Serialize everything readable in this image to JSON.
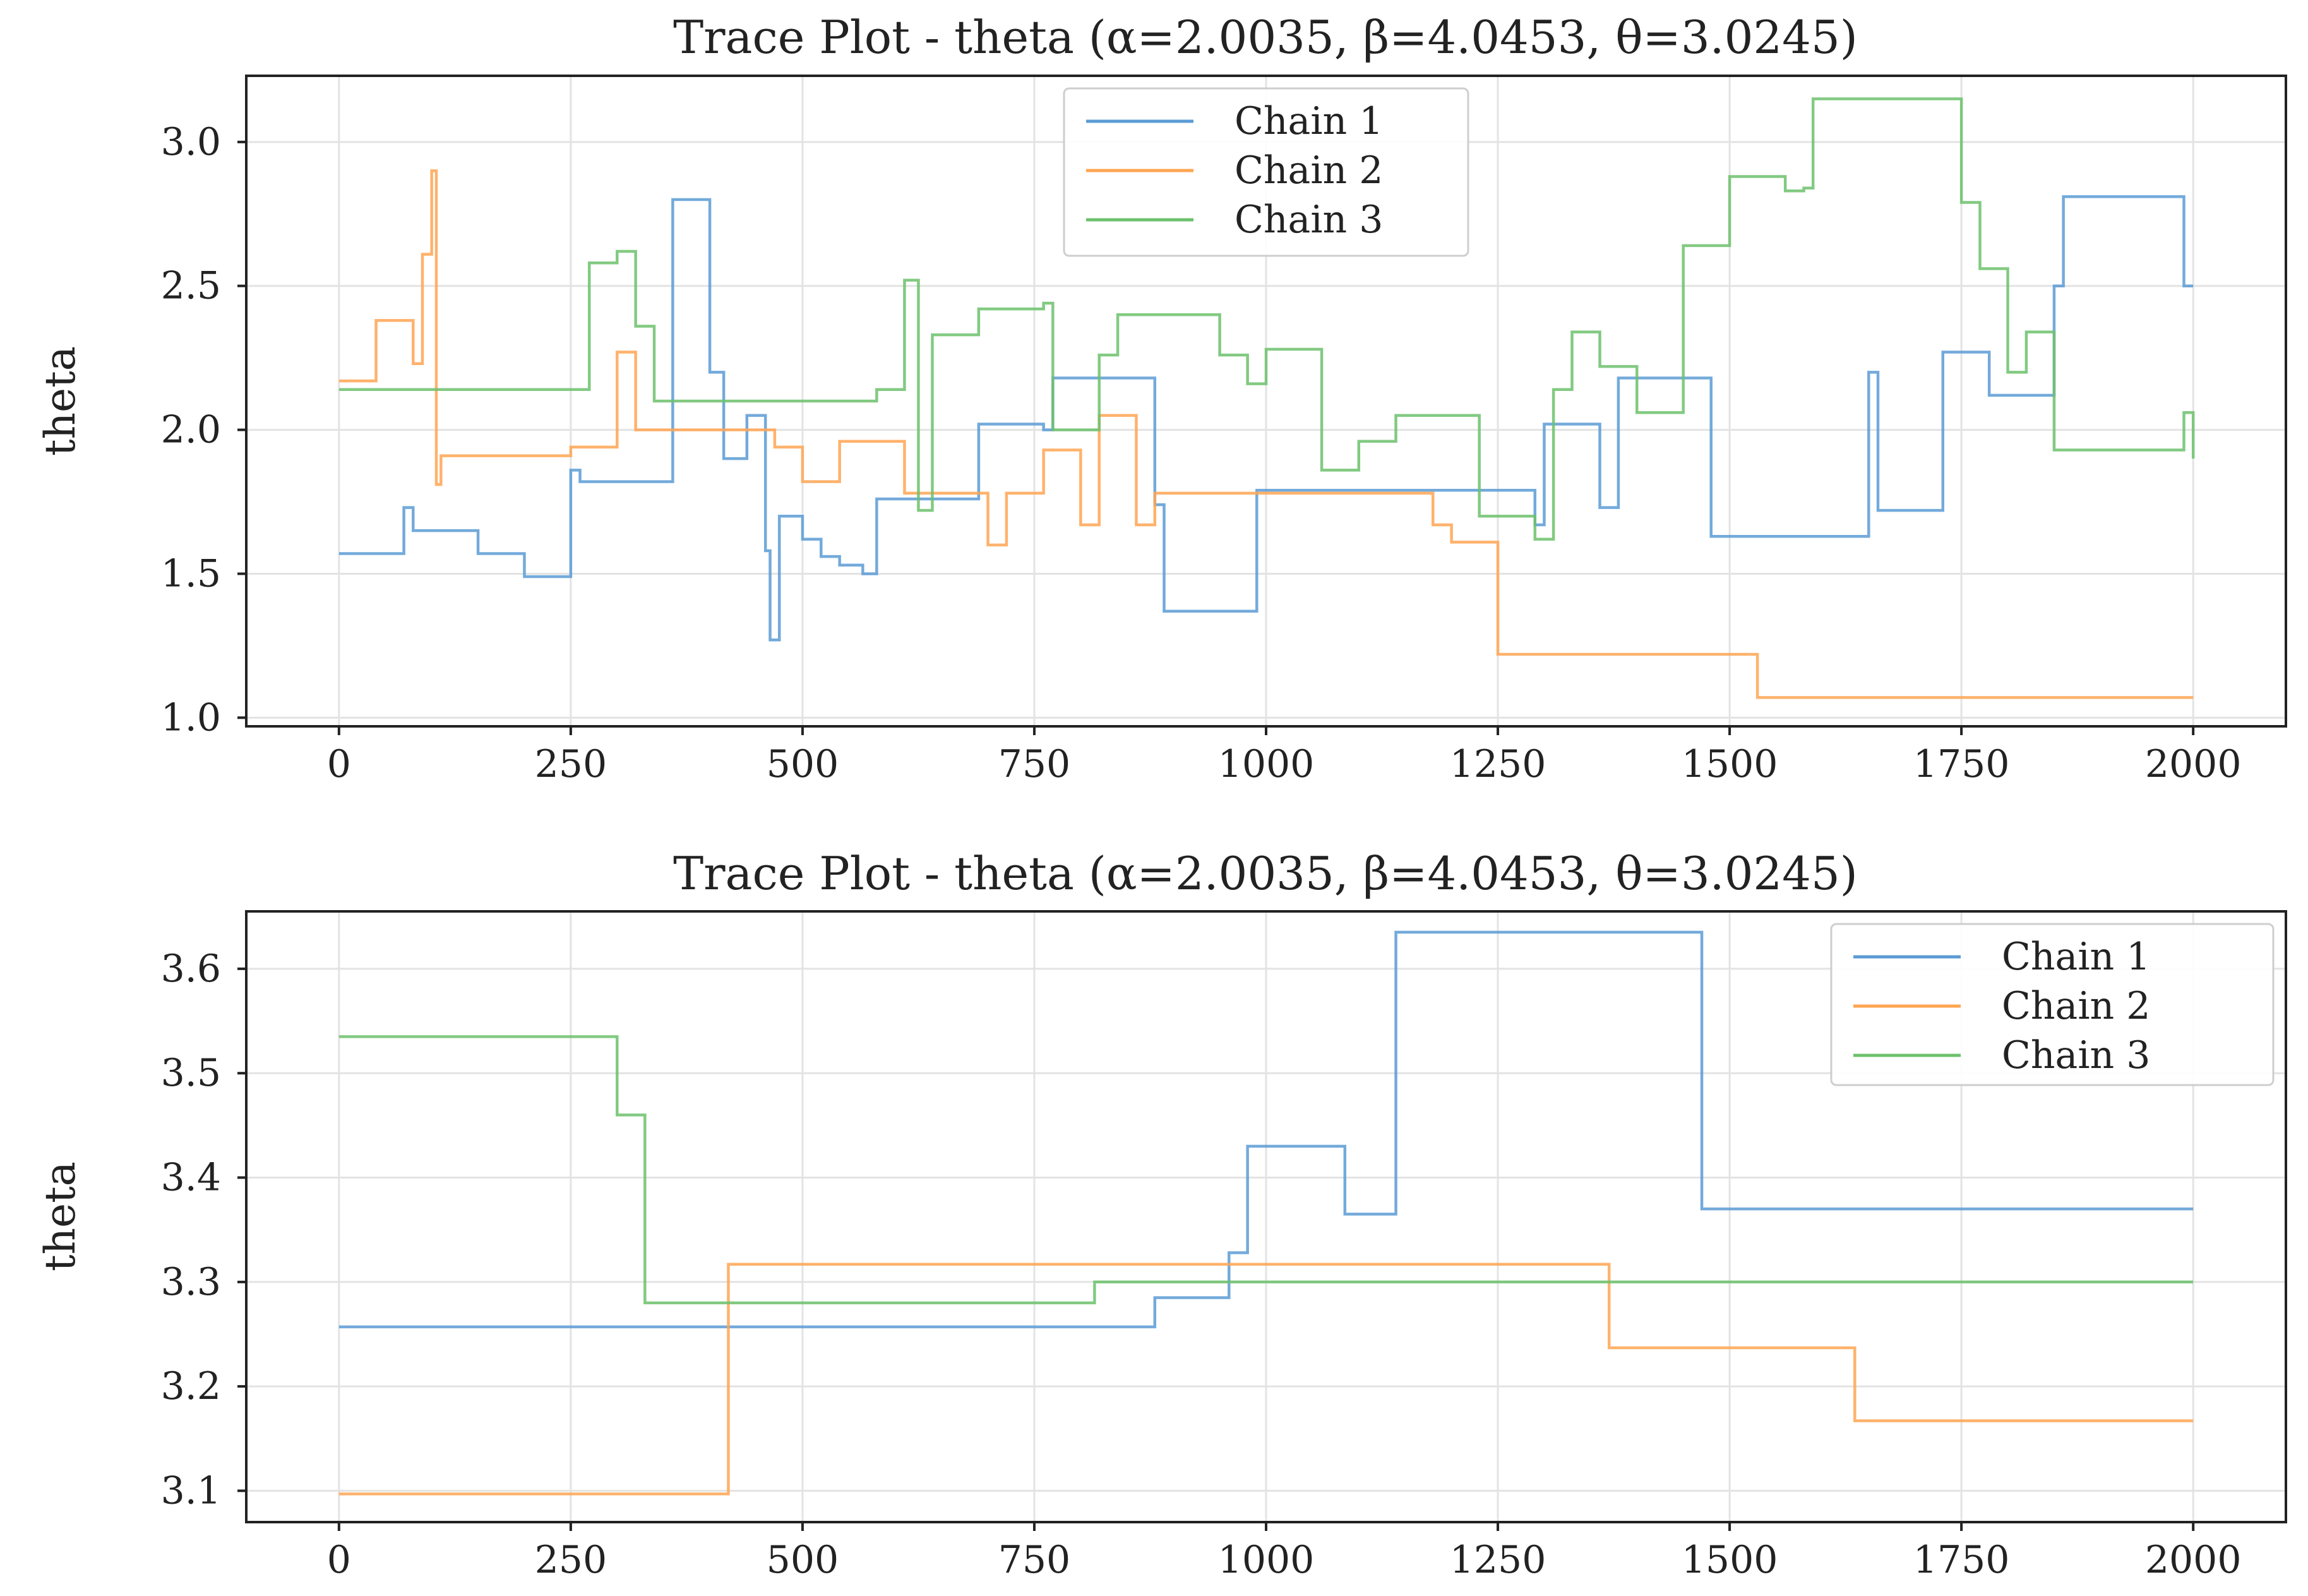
{
  "colors": {
    "chain1": "#5b9bd5",
    "chain2": "#ffa552",
    "chain3": "#6cc16c"
  },
  "chart_data": [
    {
      "type": "line",
      "title": "Trace Plot - theta (α=2.0035, β=4.0453, θ=3.0245)",
      "xlabel": "",
      "ylabel": "theta",
      "xlim": [
        -100,
        2100
      ],
      "ylim": [
        0.97,
        3.23
      ],
      "xticks": [
        0,
        250,
        500,
        750,
        1000,
        1250,
        1500,
        1750,
        2000
      ],
      "xtick_labels": [
        "0",
        "250",
        "500",
        "750",
        "1000",
        "1250",
        "1500",
        "1750",
        "2000"
      ],
      "yticks": [
        1.0,
        1.5,
        2.0,
        2.5,
        3.0
      ],
      "ytick_labels": [
        "1.0",
        "1.5",
        "2.0",
        "2.5",
        "3.0"
      ],
      "grid": true,
      "legend_position": "top-center",
      "step": true,
      "series": [
        {
          "name": "Chain 1",
          "color": "#5b9bd5",
          "x": [
            0,
            70,
            80,
            150,
            200,
            250,
            260,
            360,
            400,
            415,
            440,
            460,
            465,
            475,
            500,
            520,
            540,
            565,
            580,
            610,
            690,
            760,
            770,
            880,
            890,
            985,
            990,
            1190,
            1290,
            1300,
            1360,
            1380,
            1420,
            1480,
            1510,
            1650,
            1660,
            1700,
            1730,
            1780,
            1850,
            1860,
            1880,
            1890,
            1990,
            2000
          ],
          "y": [
            1.57,
            1.73,
            1.65,
            1.57,
            1.49,
            1.86,
            1.82,
            2.8,
            2.2,
            1.9,
            2.05,
            1.58,
            1.27,
            1.7,
            1.62,
            1.56,
            1.53,
            1.5,
            1.76,
            1.76,
            2.02,
            2.0,
            2.18,
            1.74,
            1.37,
            1.37,
            1.79,
            1.79,
            1.67,
            2.02,
            1.73,
            2.18,
            2.18,
            1.63,
            1.63,
            2.2,
            1.72,
            1.72,
            2.27,
            2.12,
            2.5,
            2.81,
            2.81,
            2.81,
            2.5,
            2.5
          ]
        },
        {
          "name": "Chain 2",
          "color": "#ffa552",
          "x": [
            0,
            40,
            80,
            90,
            100,
            105,
            110,
            180,
            250,
            300,
            320,
            400,
            470,
            500,
            540,
            560,
            610,
            650,
            700,
            720,
            760,
            800,
            820,
            860,
            880,
            990,
            1180,
            1200,
            1250,
            1500,
            1530,
            2000
          ],
          "y": [
            2.17,
            2.38,
            2.23,
            2.61,
            2.9,
            1.81,
            1.91,
            1.91,
            1.94,
            2.27,
            2.0,
            2.0,
            1.94,
            1.82,
            1.96,
            1.96,
            1.78,
            1.78,
            1.6,
            1.78,
            1.93,
            1.67,
            2.05,
            1.67,
            1.78,
            1.78,
            1.67,
            1.61,
            1.22,
            1.22,
            1.07,
            1.07
          ]
        },
        {
          "name": "Chain 3",
          "color": "#6cc16c",
          "x": [
            0,
            270,
            300,
            320,
            340,
            560,
            580,
            610,
            625,
            640,
            690,
            760,
            770,
            820,
            840,
            900,
            950,
            980,
            1000,
            1060,
            1100,
            1120,
            1140,
            1210,
            1230,
            1290,
            1310,
            1330,
            1360,
            1400,
            1450,
            1500,
            1560,
            1580,
            1590,
            1620,
            1750,
            1770,
            1800,
            1820,
            1850,
            1920,
            1990,
            2000
          ],
          "y": [
            2.14,
            2.58,
            2.62,
            2.36,
            2.1,
            2.1,
            2.14,
            2.52,
            1.72,
            2.33,
            2.42,
            2.44,
            2.0,
            2.26,
            2.4,
            2.4,
            2.26,
            2.16,
            2.28,
            1.86,
            1.96,
            1.96,
            2.05,
            2.05,
            1.7,
            1.62,
            2.14,
            2.34,
            2.22,
            2.06,
            2.64,
            2.88,
            2.83,
            2.84,
            3.15,
            3.15,
            2.79,
            2.56,
            2.2,
            2.34,
            1.93,
            1.93,
            2.06,
            1.9
          ]
        }
      ]
    },
    {
      "type": "line",
      "title": "Trace Plot - theta (α=2.0035, β=4.0453, θ=3.0245)",
      "xlabel": "",
      "ylabel": "theta",
      "xlim": [
        -100,
        2100
      ],
      "ylim": [
        3.07,
        3.655
      ],
      "xticks": [
        0,
        250,
        500,
        750,
        1000,
        1250,
        1500,
        1750,
        2000
      ],
      "xtick_labels": [
        "0",
        "250",
        "500",
        "750",
        "1000",
        "1250",
        "1500",
        "1750",
        "2000"
      ],
      "yticks": [
        3.1,
        3.2,
        3.3,
        3.4,
        3.5,
        3.6
      ],
      "ytick_labels": [
        "3.1",
        "3.2",
        "3.3",
        "3.4",
        "3.5",
        "3.6"
      ],
      "grid": true,
      "legend_position": "top-right",
      "step": true,
      "series": [
        {
          "name": "Chain 1",
          "color": "#5b9bd5",
          "x": [
            0,
            880,
            960,
            980,
            1085,
            1140,
            1470,
            2000
          ],
          "y": [
            3.257,
            3.285,
            3.328,
            3.43,
            3.365,
            3.635,
            3.37,
            3.37
          ]
        },
        {
          "name": "Chain 2",
          "color": "#ffa552",
          "x": [
            0,
            420,
            1370,
            1635,
            2000
          ],
          "y": [
            3.097,
            3.317,
            3.237,
            3.167,
            3.167
          ]
        },
        {
          "name": "Chain 3",
          "color": "#6cc16c",
          "x": [
            0,
            300,
            330,
            815,
            2000
          ],
          "y": [
            3.535,
            3.46,
            3.28,
            3.3,
            3.3
          ]
        }
      ]
    }
  ]
}
